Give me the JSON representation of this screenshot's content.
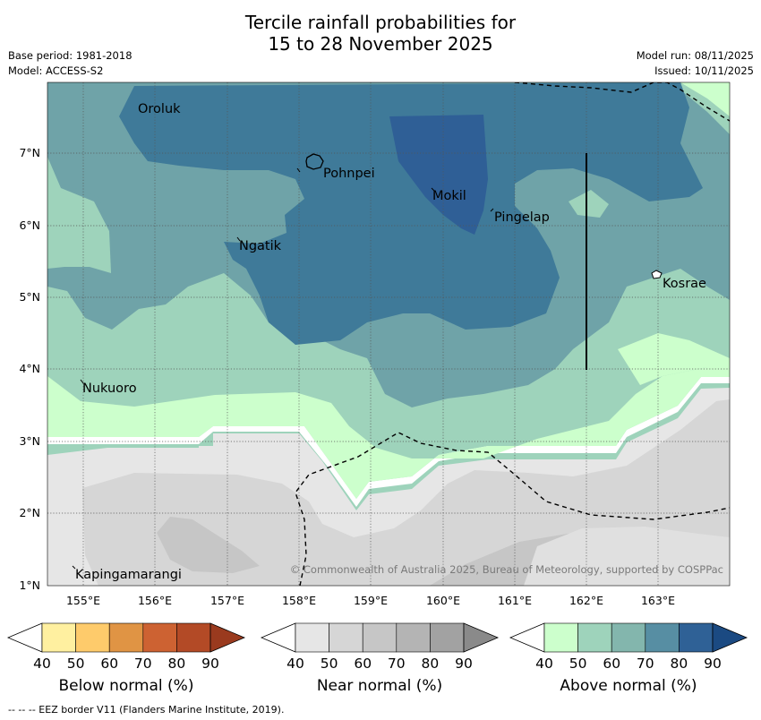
{
  "title": {
    "line1": "Tercile rainfall probabilities for",
    "line2": "15 to 28 November 2025"
  },
  "meta": {
    "base_period": "Base period: 1981-2018",
    "model": "Model: ACCESS-S2",
    "model_run": "Model run: 08/11/2025",
    "issued": "Issued: 10/11/2025"
  },
  "map": {
    "lon_ticks": [
      "155°E",
      "156°E",
      "157°E",
      "158°E",
      "159°E",
      "160°E",
      "161°E",
      "162°E",
      "163°E"
    ],
    "lat_ticks": [
      "1°N",
      "2°N",
      "3°N",
      "4°N",
      "5°N",
      "6°N",
      "7°N"
    ],
    "places": {
      "oroluk": "Oroluk",
      "pohnpei": "Pohnpei",
      "mokil": "Mokil",
      "pingelap": "Pingelap",
      "ngatik": "Ngatik",
      "kosrae": "Kosrae",
      "nukuoro": "Nukuoro",
      "kapingamarangi": "Kapingamarangi"
    },
    "copyright": "© Commonwealth of Australia 2025, Bureau of Meteorology, supported by COSPPac"
  },
  "legend": {
    "below": {
      "title": "Below normal (%)",
      "ticks": [
        "40",
        "50",
        "60",
        "70",
        "80",
        "90"
      ],
      "colors": [
        "#fff0a0",
        "#fecb6b",
        "#e09444",
        "#cd6232",
        "#b34a26",
        "#9a3a1e"
      ]
    },
    "near": {
      "title": "Near normal (%)",
      "ticks": [
        "40",
        "50",
        "60",
        "70",
        "80",
        "90"
      ],
      "colors": [
        "#e6e6e6",
        "#d6d6d6",
        "#c6c6c6",
        "#b4b4b4",
        "#a2a2a2",
        "#8a8a8a"
      ]
    },
    "above": {
      "title": "Above normal (%)",
      "ticks": [
        "40",
        "50",
        "60",
        "70",
        "80",
        "90"
      ],
      "colors": [
        "#ccffcc",
        "#9ed3bb",
        "#83b6ad",
        "#578ea3",
        "#2f6196",
        "#1b4a82"
      ]
    }
  },
  "footer": "--  --  -- EEZ border V11 (Flanders Marine Institute, 2019)."
}
